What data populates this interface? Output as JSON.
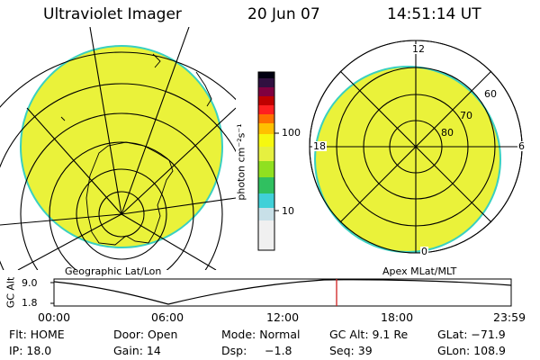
{
  "header": {
    "instrument": "Ultraviolet Imager",
    "date": "20 Jun 07",
    "time": "14:51:14 UT"
  },
  "left_panel": {
    "caption": "Geographic Lat/Lon"
  },
  "right_panel": {
    "caption": "Apex MLat/MLT",
    "mlt_labels": [
      "12",
      "18",
      "6",
      "0"
    ],
    "mlat_labels": [
      "60",
      "70",
      "80"
    ]
  },
  "colorbar": {
    "unit_label": "photon cm⁻²s⁻¹",
    "tick_labels": [
      "100",
      "10"
    ],
    "colors": [
      "#f0f0f0",
      "#c8e0e8",
      "#40d0d8",
      "#30c060",
      "#90e020",
      "#e6f040",
      "#f6f810",
      "#ffc000",
      "#ff7000",
      "#ff2020",
      "#c00000",
      "#800040",
      "#301040",
      "#000010"
    ]
  },
  "altitude_plot": {
    "ylabel": "GC Alt",
    "y_ticks": [
      "9.0",
      "1.8"
    ],
    "x_ticks": [
      "00:00",
      "06:00",
      "12:00",
      "18:00",
      "23:59"
    ],
    "marker_time": "14:51"
  },
  "status": {
    "flt": "Flt: HOME",
    "door": "Door: Open",
    "mode": "Mode: Normal",
    "gc_alt": "GC Alt: 9.1 Re",
    "glat": "GLat: −71.9",
    "ip": "IP: 18.0",
    "gain": "Gain: 14",
    "dsp": "Dsp:     −1.8",
    "seq": "Seq: 39",
    "glon": "GLon: 108.9"
  },
  "colors": {
    "image_fill": "#eaf23a",
    "image_edge": "#3ad0c0",
    "marker": "#d02020"
  }
}
